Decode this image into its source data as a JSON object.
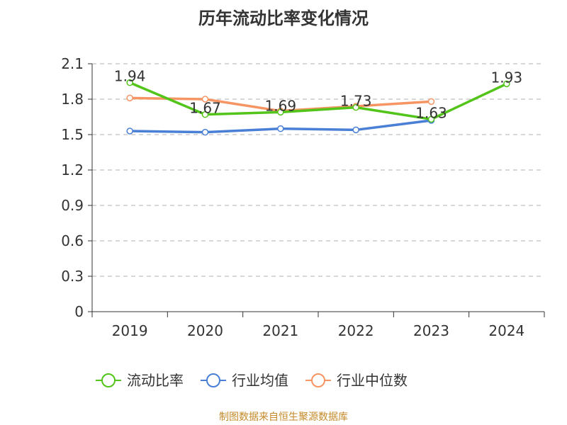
{
  "chart_data": {
    "type": "line",
    "title": "历年流动比率变化情况",
    "categories": [
      "2019",
      "2020",
      "2021",
      "2022",
      "2023",
      "2024"
    ],
    "series": [
      {
        "name": "流动比率",
        "color": "#52c41a",
        "values": [
          1.94,
          1.67,
          1.69,
          1.73,
          1.63,
          1.93
        ],
        "labels": [
          "1.94",
          "1.67",
          "1.69",
          "1.73",
          "1.63",
          "1.93"
        ]
      },
      {
        "name": "行业均值",
        "color": "#4a7fd6",
        "values": [
          1.53,
          1.52,
          1.55,
          1.54,
          1.62,
          null
        ]
      },
      {
        "name": "行业中位数",
        "color": "#f59563",
        "values": [
          1.81,
          1.8,
          1.7,
          1.74,
          1.78,
          null
        ]
      }
    ],
    "yticks": [
      "0",
      "0.3",
      "0.6",
      "0.9",
      "1.2",
      "1.5",
      "1.8",
      "2.1"
    ],
    "ylim": [
      0,
      2.1
    ],
    "grid": true,
    "legend_position": "bottom"
  },
  "source": "制图数据来自恒生聚源数据库"
}
